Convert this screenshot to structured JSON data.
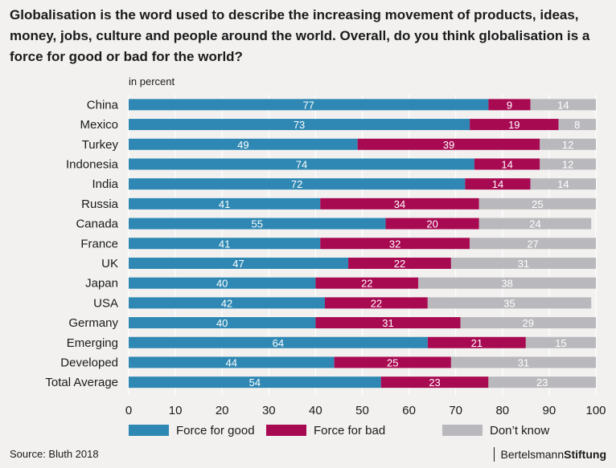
{
  "title": "Globalisation is the word used to describe the increasing movement of products, ideas, money, jobs, culture and people around the world.  Overall, do you think globalisation is a force for good or bad for the world?",
  "unit_label": "in percent",
  "source": "Source: Bluth 2018",
  "brand": {
    "part1": "Bertelsmann",
    "part2": "Stiftung"
  },
  "chart_data": {
    "type": "bar",
    "orientation": "horizontal",
    "stacked": true,
    "categories": [
      "China",
      "Mexico",
      "Turkey",
      "Indonesia",
      "India",
      "Russia",
      "Canada",
      "France",
      "UK",
      "Japan",
      "USA",
      "Germany",
      "Emerging",
      "Developed",
      "Total Average"
    ],
    "series": [
      {
        "name": "Force for good",
        "color": "#2e88b3",
        "values": [
          77,
          73,
          49,
          74,
          72,
          41,
          55,
          41,
          47,
          40,
          42,
          40,
          64,
          44,
          54
        ]
      },
      {
        "name": "Force for bad",
        "color": "#a80a52",
        "values": [
          9,
          19,
          39,
          14,
          14,
          34,
          20,
          32,
          22,
          22,
          22,
          31,
          21,
          25,
          23
        ]
      },
      {
        "name": "Don’t know",
        "color": "#b9b9bd",
        "values": [
          14,
          8,
          12,
          12,
          14,
          25,
          24,
          27,
          31,
          38,
          35,
          29,
          15,
          31,
          23
        ]
      }
    ],
    "xlim": [
      0,
      100
    ],
    "xticks": [
      0,
      10,
      20,
      30,
      40,
      50,
      60,
      70,
      80,
      90,
      100
    ],
    "grid": true,
    "legend_position": "bottom"
  }
}
